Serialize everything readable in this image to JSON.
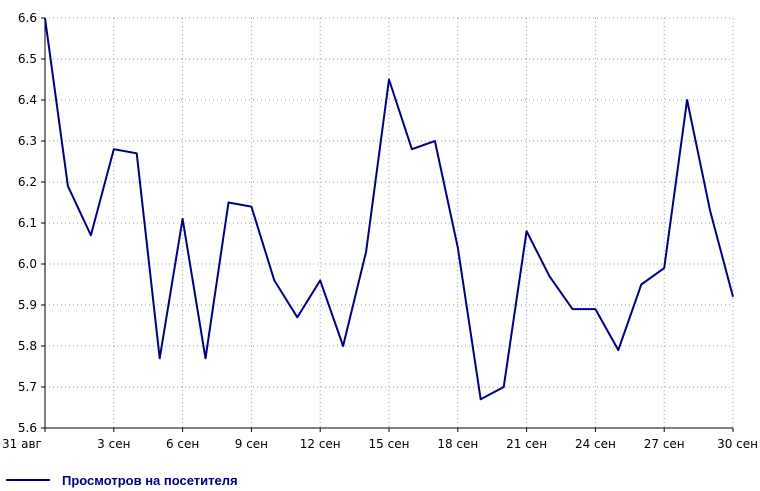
{
  "chart_data": {
    "type": "line",
    "x": [
      "31 авг",
      "1 сен",
      "2 сен",
      "3 сен",
      "4 сен",
      "5 сен",
      "6 сен",
      "7 сен",
      "8 сен",
      "9 сен",
      "10 сен",
      "11 сен",
      "12 сен",
      "13 сен",
      "14 сен",
      "15 сен",
      "16 сен",
      "17 сен",
      "18 сен",
      "19 сен",
      "20 сен",
      "21 сен",
      "22 сен",
      "23 сен",
      "24 сен",
      "25 сен",
      "26 сен",
      "27 сен",
      "28 сен",
      "29 сен",
      "30 сен"
    ],
    "xticks": [
      "31 авг",
      "3 сен",
      "6 сен",
      "9 сен",
      "12 сен",
      "15 сен",
      "18 сен",
      "21 сен",
      "24 сен",
      "27 сен",
      "30 сен"
    ],
    "yticks": [
      "5.6",
      "5.7",
      "5.8",
      "5.9",
      "6.0",
      "6.1",
      "6.2",
      "6.3",
      "6.4",
      "6.5",
      "6.6"
    ],
    "ylim": [
      5.6,
      6.6
    ],
    "grid": true,
    "legend_position": "bottom-left",
    "series": [
      {
        "name": "Просмотров на посетителя",
        "color": "#000080",
        "values": [
          6.6,
          6.19,
          6.07,
          6.28,
          6.27,
          5.77,
          6.11,
          5.77,
          6.15,
          6.14,
          5.96,
          5.87,
          5.96,
          5.8,
          6.03,
          6.45,
          6.28,
          6.3,
          6.04,
          5.67,
          5.7,
          6.08,
          5.97,
          5.89,
          5.89,
          5.79,
          5.95,
          5.99,
          6.4,
          6.13,
          5.92
        ]
      }
    ]
  }
}
